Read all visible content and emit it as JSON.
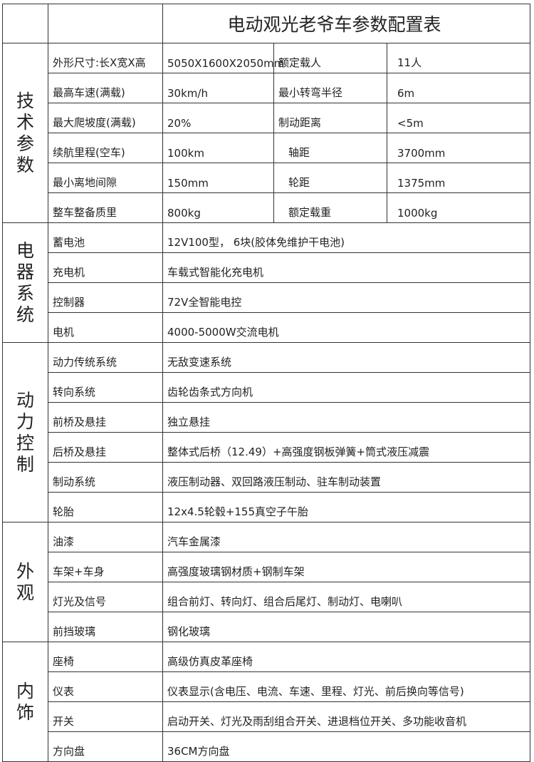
{
  "title": "电动观光老爷车参数配置表",
  "sections": [
    {
      "name": "技术参数",
      "rows": [
        {
          "label": "外形尺寸:长X宽X高",
          "value": "5050X1600X2050mm",
          "label2": "额定载人",
          "value2": "11人"
        },
        {
          "label": "最高车速(满载)",
          "value": "30km/h",
          "label2": "最小转弯半径",
          "value2": "6m"
        },
        {
          "label": "最大爬坡度(满载)",
          "value": "20%",
          "label2": "制动距离",
          "value2": "<5m"
        },
        {
          "label": "续航里程(空车)",
          "value": "100km",
          "label2": "轴距",
          "value2": "3700mm"
        },
        {
          "label": "最小离地间隙",
          "value": "150mm",
          "label2": "轮距",
          "value2": "1375mm"
        },
        {
          "label": "整车整备质里",
          "value": "800kg",
          "label2": "额定载重",
          "value2": "1000kg"
        }
      ]
    },
    {
      "name": "电器系统",
      "rows": [
        {
          "label": "蓄电池",
          "value": "12V100型，   6块(胶体免维护干电池)"
        },
        {
          "label": "充电机",
          "value": "车载式智能化充电机"
        },
        {
          "label": "控制器",
          "value": "72V全智能电控"
        },
        {
          "label": "电机",
          "value": "4000-5000W交流电机"
        }
      ]
    },
    {
      "name": "动力控制",
      "rows": [
        {
          "label": "动力传统系统",
          "value": "无敌变速系统"
        },
        {
          "label": "转向系统",
          "value": "齿轮齿条式方向机"
        },
        {
          "label": "前桥及悬挂",
          "value": "独立悬挂"
        },
        {
          "label": "后桥及悬挂",
          "value": "整体式后桥（12.49）+高强度钢板弹簧+筒式液压减震"
        },
        {
          "label": "制动系统",
          "value": "液压制动器、双回路液压制动、驻车制动装置"
        },
        {
          "label": "轮胎",
          "value": "12x4.5轮毂+155真空子午胎"
        }
      ]
    },
    {
      "name": "外观",
      "rows": [
        {
          "label": "油漆",
          "value": "汽车金属漆"
        },
        {
          "label": "车架+车身",
          "value": "高强度玻璃钢材质+钢制车架"
        },
        {
          "label": "灯光及信号",
          "value": "组合前灯、转向灯、组合后尾灯、制动灯、电喇叭"
        },
        {
          "label": "前挡玻璃",
          "value": "钢化玻璃"
        }
      ]
    },
    {
      "name": "内饰",
      "rows": [
        {
          "label": "座椅",
          "value": "高级仿真皮革座椅"
        },
        {
          "label": "仪表",
          "value": "仪表显示(含电压、电流、车速、里程、灯光、前后换向等信号)"
        },
        {
          "label": "开关",
          "value": "启动开关、灯光及雨刮组合开关、进退档位开关、多功能收音机"
        },
        {
          "label": "方向盘",
          "value": "36CM方向盘"
        }
      ]
    }
  ]
}
